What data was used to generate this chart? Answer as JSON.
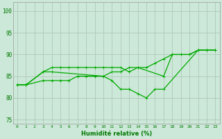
{
  "background_color": "#cce8d8",
  "line_color": "#00aa00",
  "grid_color": "#b0c8b8",
  "xlabel": "Humidité relative (%)",
  "ylim": [
    74,
    102
  ],
  "xlim": [
    -0.5,
    23.5
  ],
  "yticks": [
    75,
    80,
    85,
    90,
    95,
    100
  ],
  "xticks": [
    0,
    1,
    2,
    3,
    4,
    5,
    6,
    7,
    8,
    9,
    10,
    11,
    12,
    13,
    14,
    15,
    16,
    17,
    18,
    19,
    20,
    21,
    22,
    23
  ],
  "line1_x": [
    0,
    1,
    3,
    4,
    5,
    6,
    7,
    8,
    9,
    10,
    11,
    12,
    13,
    14,
    17,
    18,
    19,
    20,
    21,
    22,
    23
  ],
  "line1_y": [
    83,
    83,
    86,
    87,
    87,
    87,
    87,
    87,
    87,
    87,
    87,
    87,
    86,
    87,
    85,
    90,
    90,
    90,
    91,
    91,
    91
  ],
  "line2_x": [
    0,
    1,
    3,
    4,
    10,
    11,
    12,
    13,
    14,
    15,
    16,
    17,
    21,
    22,
    23
  ],
  "line2_y": [
    83,
    83,
    86,
    86,
    85,
    84,
    82,
    82,
    81,
    80,
    82,
    82,
    91,
    91,
    91
  ],
  "line3_x": [
    0,
    1,
    3,
    4,
    5,
    6,
    7,
    8,
    9,
    10,
    11,
    12,
    13,
    14,
    15,
    16,
    17,
    18,
    19,
    20,
    21,
    22,
    23
  ],
  "line3_y": [
    83,
    83,
    84,
    84,
    84,
    84,
    85,
    85,
    85,
    85,
    86,
    86,
    87,
    87,
    87,
    88,
    89,
    90,
    90,
    90,
    91,
    91,
    91
  ]
}
